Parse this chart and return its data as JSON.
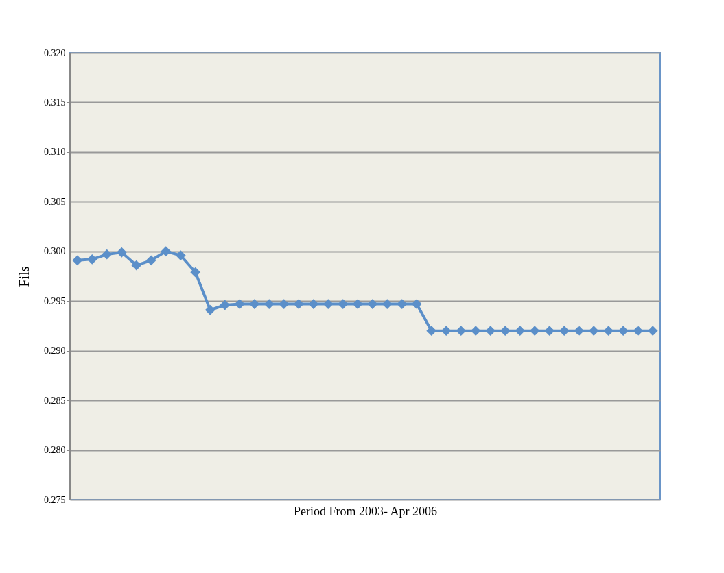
{
  "chart_data": {
    "type": "line",
    "xlabel": "Period From  2003- Apr 2006",
    "ylabel": "Fils",
    "categories": [
      null,
      null,
      null,
      null,
      null,
      null,
      null,
      null,
      null,
      null,
      null,
      null,
      null,
      null,
      null,
      null,
      null,
      null,
      null,
      null,
      null,
      null,
      null,
      null,
      null,
      null,
      null,
      null,
      null,
      null,
      null,
      null,
      null,
      null,
      null,
      null,
      null,
      null,
      null,
      null
    ],
    "series": [
      {
        "color": "#5b8fc9",
        "values": [
          0.2991,
          0.2992,
          0.2997,
          0.2999,
          0.2986,
          0.2991,
          0.3,
          0.2996,
          0.2979,
          0.2941,
          0.2946,
          0.2947,
          0.2947,
          0.2947,
          0.2947,
          0.2947,
          0.2947,
          0.2947,
          0.2947,
          0.2947,
          0.2947,
          0.2947,
          0.2947,
          0.2947,
          0.292,
          0.292,
          0.292,
          0.292,
          0.292,
          0.292,
          0.292,
          0.292,
          0.292,
          0.292,
          0.292,
          0.292,
          0.292,
          0.292,
          0.292,
          0.292
        ]
      }
    ],
    "ylim": [
      0.275,
      0.32
    ],
    "yticks": [
      {
        "value": 0.275,
        "label": "0.275"
      },
      {
        "value": 0.28,
        "label": "0.280"
      },
      {
        "value": 0.285,
        "label": "0.285"
      },
      {
        "value": 0.29,
        "label": "0.290"
      },
      {
        "value": 0.295,
        "label": "0.295"
      },
      {
        "value": 0.3,
        "label": "0.300"
      },
      {
        "value": 0.305,
        "label": "0.305"
      },
      {
        "value": 0.31,
        "label": "0.310"
      },
      {
        "value": 0.315,
        "label": "0.315"
      },
      {
        "value": 0.32,
        "label": "0.320"
      }
    ],
    "grid": "y",
    "marker": "diamond",
    "line_style": "solid"
  }
}
